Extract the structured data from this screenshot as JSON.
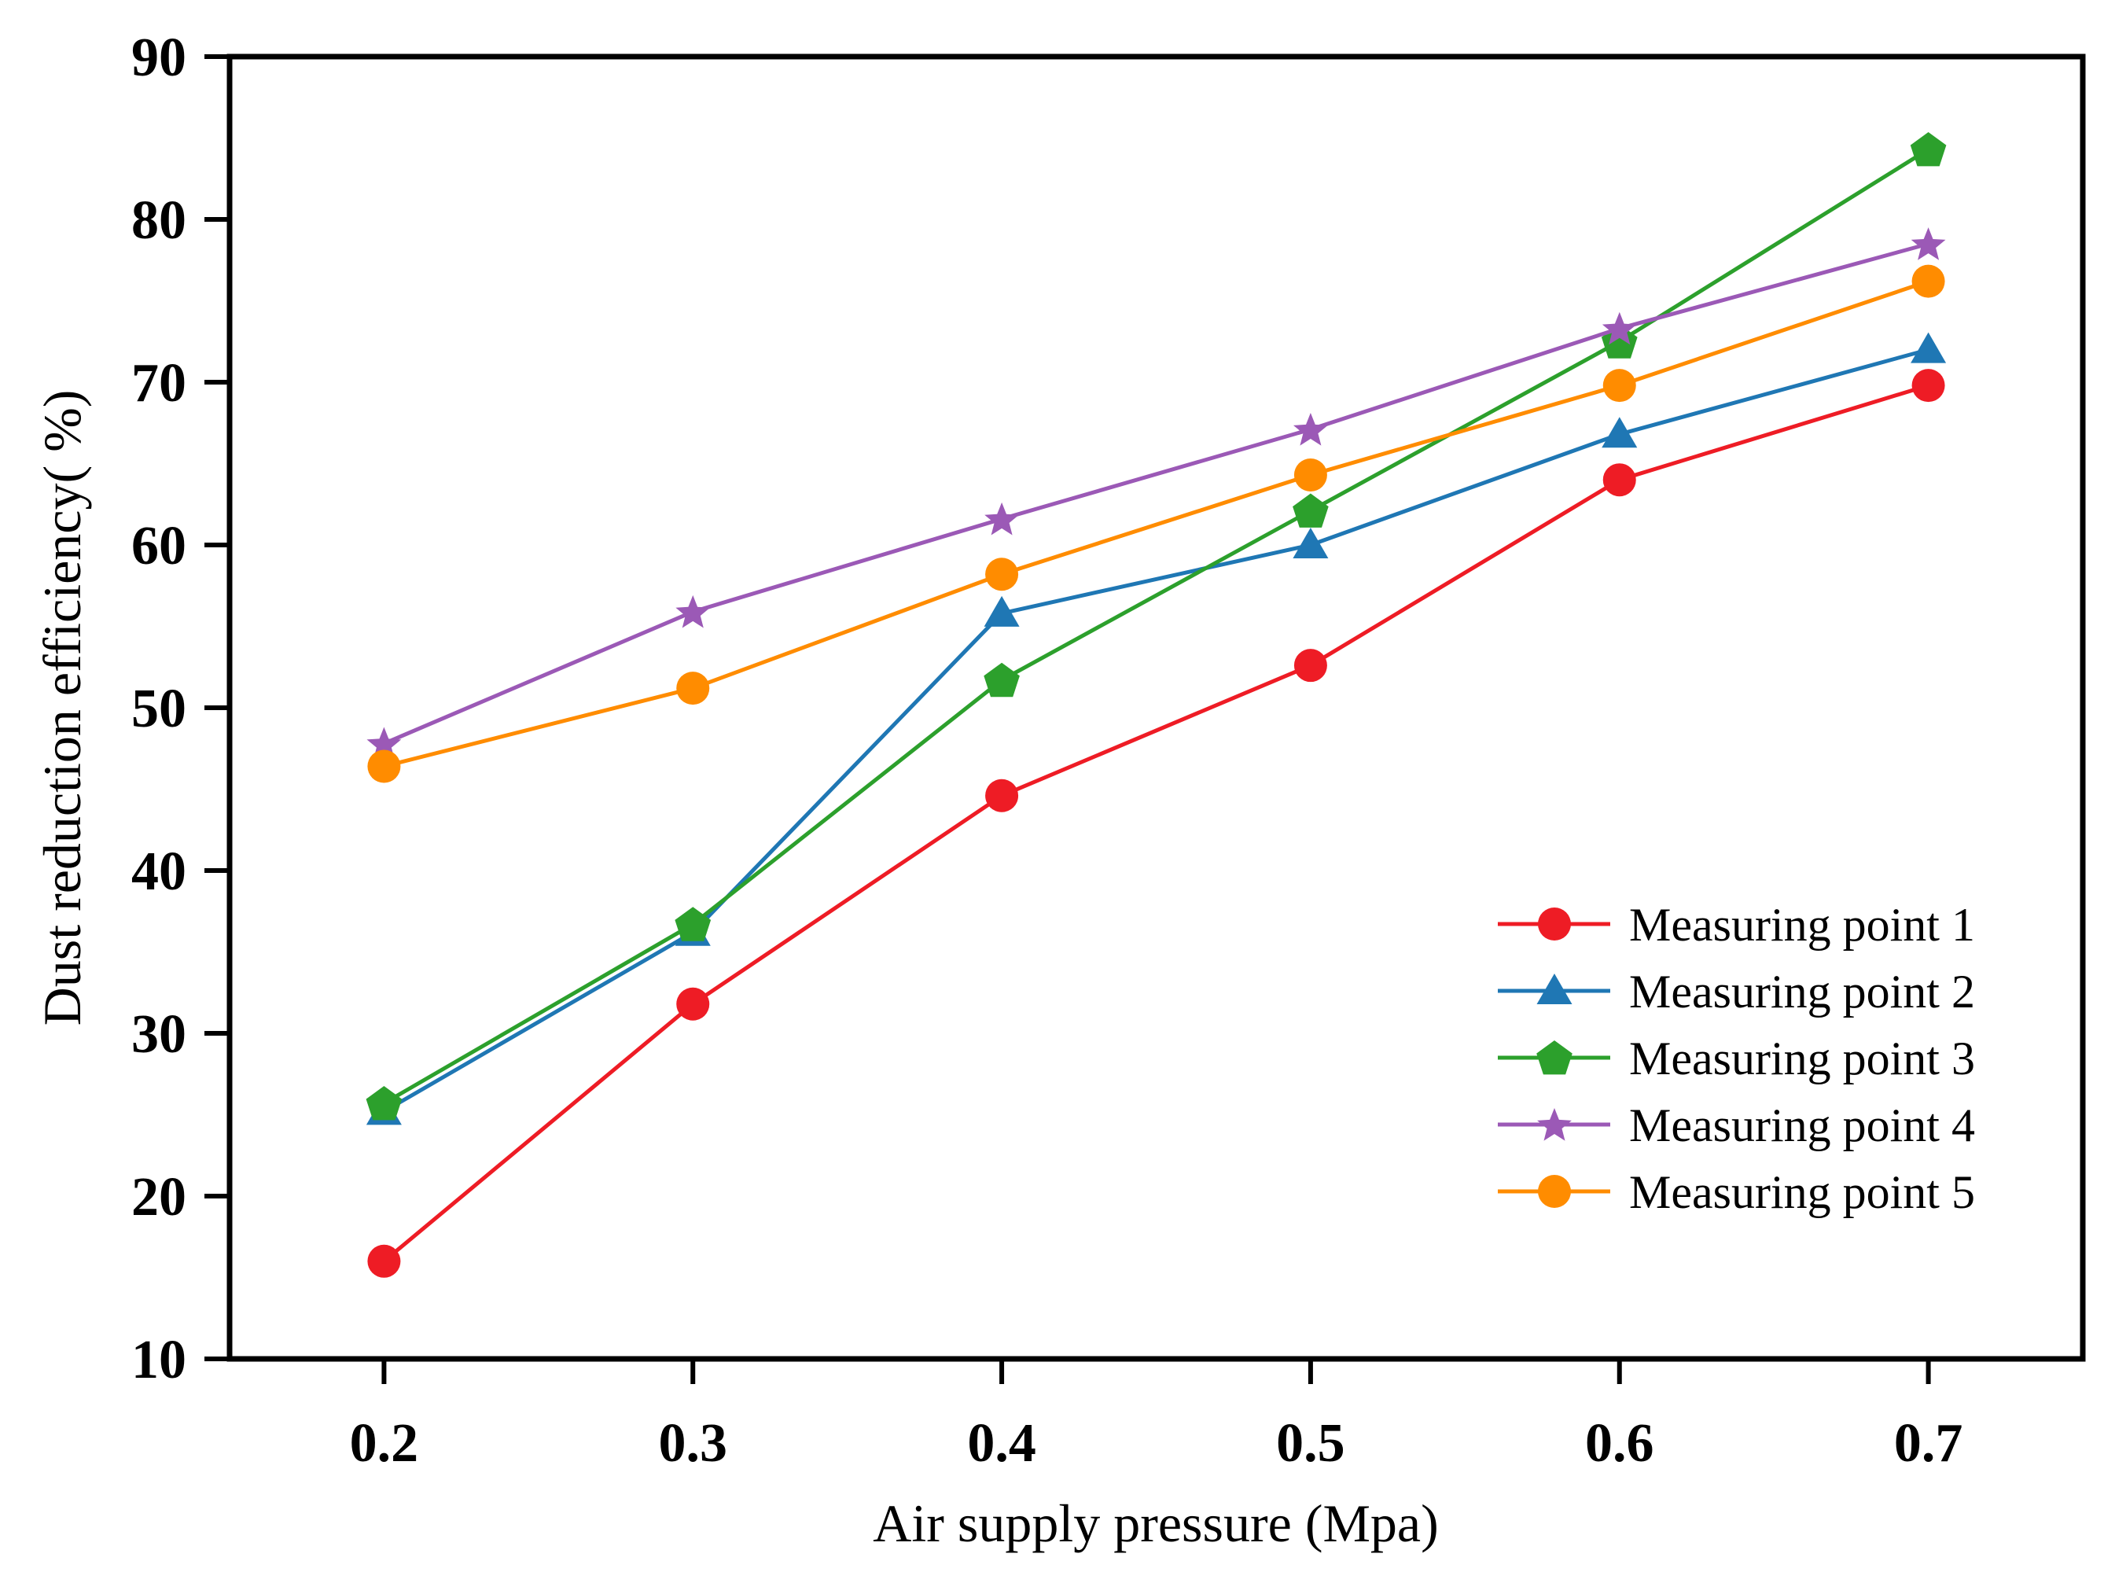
{
  "chart_data": {
    "type": "line",
    "title": "",
    "xlabel": "Air supply pressure (Mpa)",
    "ylabel": "Dust reduction efficiency( %)",
    "x": [
      0.2,
      0.3,
      0.4,
      0.5,
      0.6,
      0.7
    ],
    "x_tick_labels": [
      "0.2",
      "0.3",
      "0.4",
      "0.5",
      "0.6",
      "0.7"
    ],
    "xlim": [
      0.15,
      0.75
    ],
    "ylim": [
      10,
      90
    ],
    "y_ticks": [
      10,
      20,
      30,
      40,
      50,
      60,
      70,
      80,
      90
    ],
    "grid": false,
    "legend_position": "bottom-right",
    "series": [
      {
        "name": "Measuring point 1",
        "marker": "circle",
        "color": "#ee1c25",
        "values": [
          16.0,
          31.8,
          44.6,
          52.6,
          64.0,
          69.8
        ]
      },
      {
        "name": "Measuring point 2",
        "marker": "triangle",
        "color": "#1f77b4",
        "values": [
          25.2,
          36.2,
          55.8,
          60.0,
          66.8,
          72.0
        ]
      },
      {
        "name": "Measuring point 3",
        "marker": "pentagon",
        "color": "#2ca02c",
        "values": [
          25.7,
          36.7,
          51.7,
          62.1,
          72.5,
          84.3
        ]
      },
      {
        "name": "Measuring point 4",
        "marker": "star",
        "color": "#9b59b6",
        "values": [
          47.8,
          55.9,
          61.6,
          67.1,
          73.3,
          78.5
        ]
      },
      {
        "name": "Measuring point 5",
        "marker": "circle",
        "color": "#ff8c00",
        "values": [
          46.4,
          51.2,
          58.2,
          64.3,
          69.8,
          76.2
        ]
      }
    ]
  }
}
